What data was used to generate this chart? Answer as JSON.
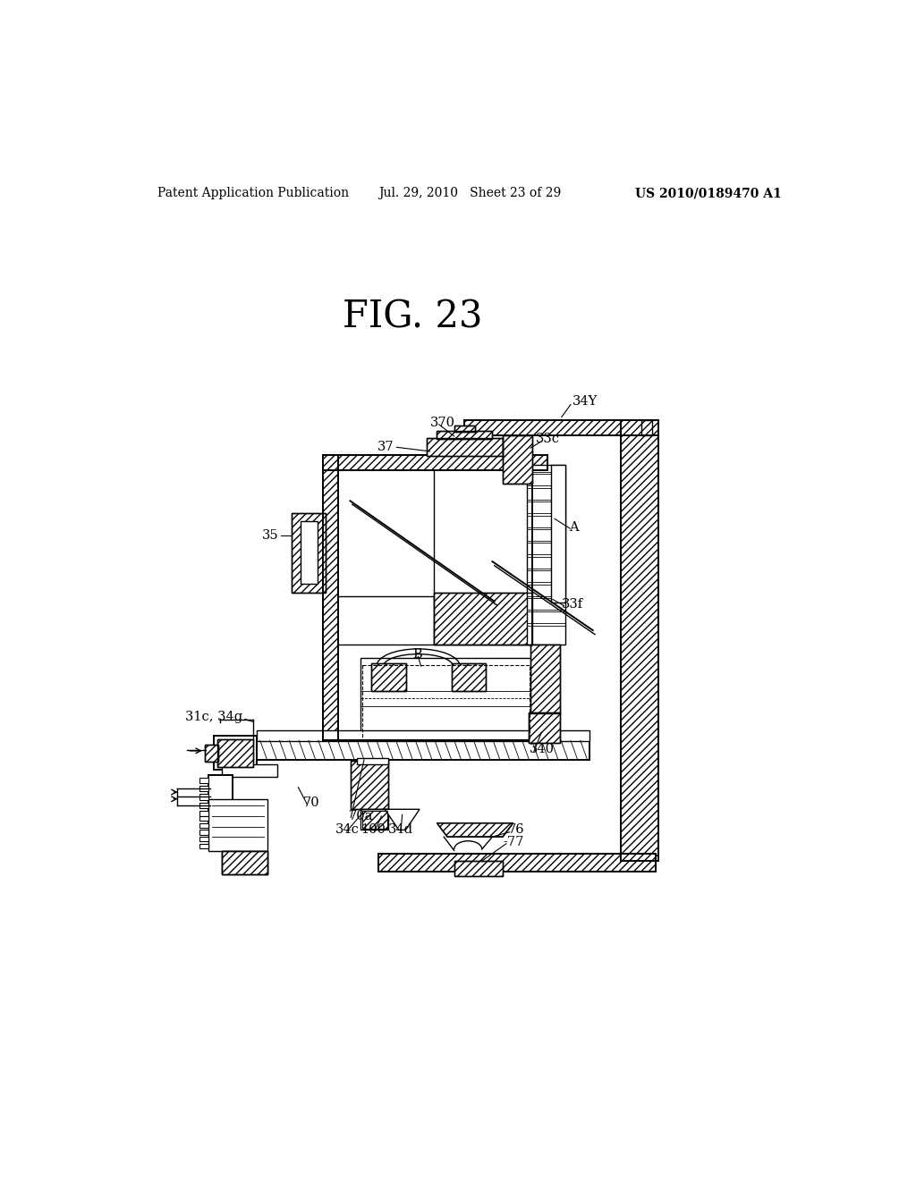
{
  "header_left": "Patent Application Publication",
  "header_center": "Jul. 29, 2010   Sheet 23 of 29",
  "header_right": "US 2010/0189470 A1",
  "fig_label": "FIG. 23",
  "bg_color": "#ffffff"
}
